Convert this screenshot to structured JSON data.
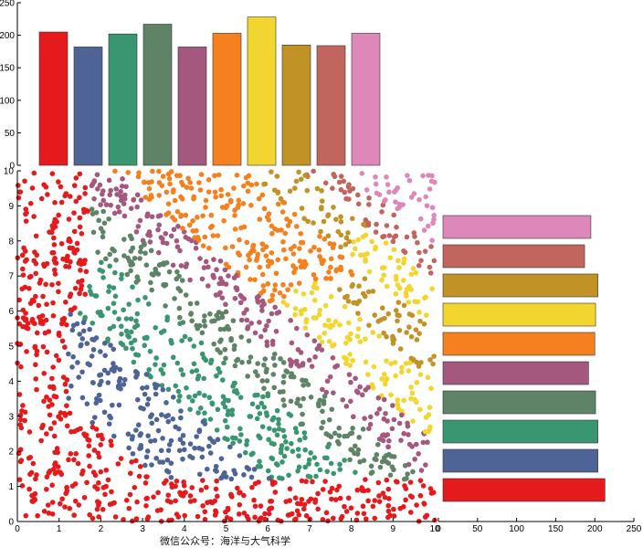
{
  "chart_data": [
    {
      "type": "bar",
      "panel": "top-marginal",
      "orientation": "vertical",
      "values": [
        205,
        182,
        202,
        217,
        182,
        203,
        228,
        185,
        184,
        203
      ],
      "colors": [
        "#e41a1c",
        "#4e6496",
        "#3a9670",
        "#5e8366",
        "#a4587d",
        "#f5801f",
        "#f2d52e",
        "#c19327",
        "#c2655e",
        "#dd88b8"
      ],
      "ylim": [
        0,
        250
      ],
      "yticks": [
        0,
        50,
        100,
        150,
        200,
        250
      ],
      "ytick_labels": [
        "0",
        "50",
        "100",
        "150",
        "200",
        "250"
      ]
    },
    {
      "type": "scatter",
      "panel": "main",
      "xlim": [
        0,
        10
      ],
      "ylim": [
        0,
        10
      ],
      "xticks": [
        0,
        1,
        2,
        3,
        4,
        5,
        6,
        7,
        8,
        9,
        10
      ],
      "xtick_labels": [
        "0",
        "1",
        "2",
        "3",
        "4",
        "5",
        "6",
        "7",
        "8",
        "9",
        "10"
      ],
      "yticks": [
        0,
        1,
        2,
        3,
        4,
        5,
        6,
        7,
        8,
        9,
        10
      ],
      "ytick_labels": [
        "0",
        "1",
        "2",
        "3",
        "4",
        "5",
        "6",
        "7",
        "8",
        "9",
        "10"
      ],
      "point_count": 2000,
      "groups": [
        "#e41a1c",
        "#4e6496",
        "#3a9670",
        "#5e8366",
        "#a4587d",
        "#f5801f",
        "#f2d52e",
        "#c19327",
        "#c2655e",
        "#dd88b8"
      ],
      "regions": [
        {
          "color": "#e41a1c",
          "note": "x < ~1.7 (all y) and y < ~1.8 band, plus lower-left triangle"
        },
        {
          "color": "#4e6496",
          "note": "diagonal band from (1.5,10) to (10,1.5)"
        },
        {
          "color": "#3a9670",
          "note": "diagonal band from (2.5,10) to (10,2.5)"
        },
        {
          "color": "#5e8366",
          "note": "diagonal band from (4,9) to (9,3.5)"
        },
        {
          "color": "#a4587d",
          "note": "band around (4,9)-(9,4)"
        },
        {
          "color": "#f5801f",
          "note": "upper-right band"
        },
        {
          "color": "#f2d52e",
          "note": "upper-right"
        },
        {
          "color": "#c19327",
          "note": "upper-right corner"
        },
        {
          "color": "#c2655e",
          "note": "upper-right corner"
        },
        {
          "color": "#dd88b8",
          "note": "top-right corner"
        }
      ]
    },
    {
      "type": "bar",
      "panel": "right-marginal",
      "orientation": "horizontal",
      "values": [
        213,
        204,
        204,
        201,
        192,
        200,
        201,
        204,
        187,
        195
      ],
      "colors": [
        "#e41a1c",
        "#4e6496",
        "#3a9670",
        "#5e8366",
        "#a4587d",
        "#f5801f",
        "#f2d52e",
        "#c19327",
        "#c2655e",
        "#dd88b8"
      ],
      "xlim": [
        0,
        250
      ],
      "xticks": [
        0,
        50,
        100,
        150,
        200,
        250
      ],
      "xtick_labels": [
        "0",
        "50",
        "100",
        "150",
        "200",
        "250"
      ]
    }
  ],
  "watermark": "微信公众号：海洋与大气科学"
}
